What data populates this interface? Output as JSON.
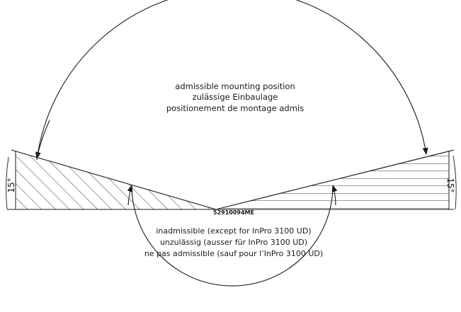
{
  "admissible_label": {
    "line1": "admissible mounting position",
    "line2": "zulässige Einbaulage",
    "line3": "positionement de montage admis"
  },
  "inadmissible_label": {
    "line1": "inadmissible (except for InPro 3100 UD)",
    "line2": "unzulässig (ausser für InPro 3100 UD)",
    "line3": "ne pas admissible (sauf pour l’InPro 3100 UD)"
  },
  "drawing_code": "52910094ME",
  "angle_left": "15°",
  "angle_right": "15°"
}
